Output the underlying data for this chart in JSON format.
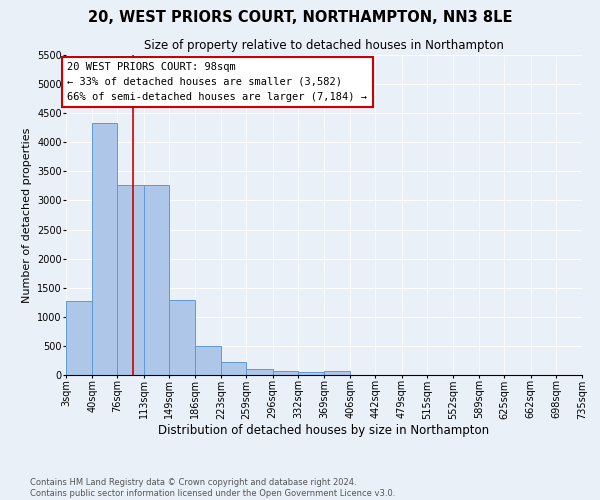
{
  "title": "20, WEST PRIORS COURT, NORTHAMPTON, NN3 8LE",
  "subtitle": "Size of property relative to detached houses in Northampton",
  "xlabel": "Distribution of detached houses by size in Northampton",
  "ylabel": "Number of detached properties",
  "bar_color": "#aec6e8",
  "bar_edge_color": "#5b9bd5",
  "background_color": "#eaf0f8",
  "grid_color": "#ffffff",
  "annotation_line1": "20 WEST PRIORS COURT: 98sqm",
  "annotation_line2": "← 33% of detached houses are smaller (3,582)",
  "annotation_line3": "66% of semi-detached houses are larger (7,184) →",
  "annotation_box_color": "#ffffff",
  "annotation_edge_color": "#cc0000",
  "red_line_x": 98,
  "red_line_color": "#cc0000",
  "bin_edges": [
    3,
    40,
    76,
    113,
    149,
    186,
    223,
    259,
    296,
    332,
    369,
    406,
    442,
    479,
    515,
    552,
    589,
    625,
    662,
    698,
    735
  ],
  "bin_labels": [
    "3sqm",
    "40sqm",
    "76sqm",
    "113sqm",
    "149sqm",
    "186sqm",
    "223sqm",
    "259sqm",
    "296sqm",
    "332sqm",
    "369sqm",
    "406sqm",
    "442sqm",
    "479sqm",
    "515sqm",
    "552sqm",
    "589sqm",
    "625sqm",
    "662sqm",
    "698sqm",
    "735sqm"
  ],
  "bar_heights": [
    1270,
    4330,
    3270,
    3270,
    1290,
    490,
    215,
    100,
    75,
    60,
    70,
    0,
    0,
    0,
    0,
    0,
    0,
    0,
    0,
    0
  ],
  "ylim": [
    0,
    5500
  ],
  "yticks": [
    0,
    500,
    1000,
    1500,
    2000,
    2500,
    3000,
    3500,
    4000,
    4500,
    5000,
    5500
  ],
  "footer_text": "Contains HM Land Registry data © Crown copyright and database right 2024.\nContains public sector information licensed under the Open Government Licence v3.0.",
  "title_fontsize": 10.5,
  "subtitle_fontsize": 8.5,
  "xlabel_fontsize": 8.5,
  "ylabel_fontsize": 8,
  "tick_fontsize": 7,
  "annotation_fontsize": 7.5,
  "footer_fontsize": 6
}
